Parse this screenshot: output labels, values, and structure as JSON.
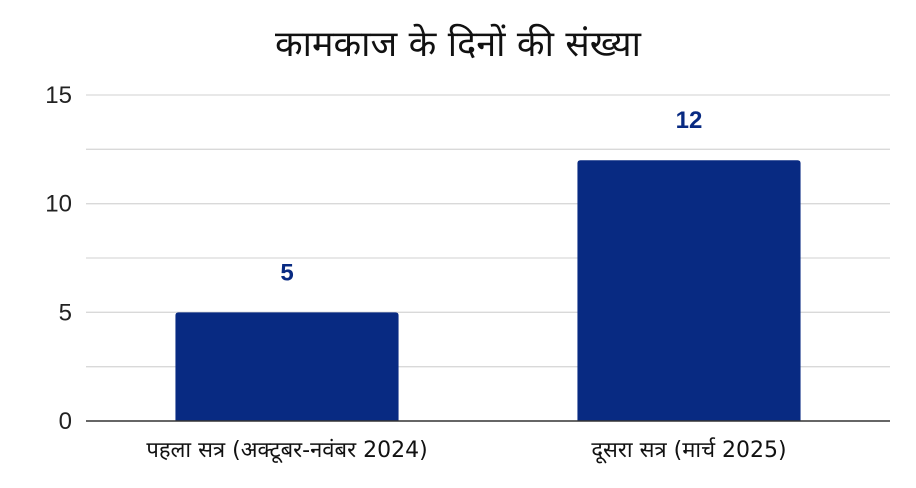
{
  "chart_data": {
    "type": "bar",
    "title": "कामकाज के दिनों की संख्या",
    "categories": [
      "पहला सत्र (अक्टूबर-नवंबर 2024)",
      "दूसरा सत्र (मार्च 2025)"
    ],
    "values": [
      5,
      12
    ],
    "data_labels": [
      "5",
      "12"
    ],
    "ylim": [
      0,
      15
    ],
    "yticks": [
      0,
      5,
      10,
      15
    ],
    "grid": true,
    "xlabel": "",
    "ylabel": "",
    "bar_color": "#082a82",
    "label_color": "#082a82",
    "grid_color": "#d9d9d9"
  }
}
